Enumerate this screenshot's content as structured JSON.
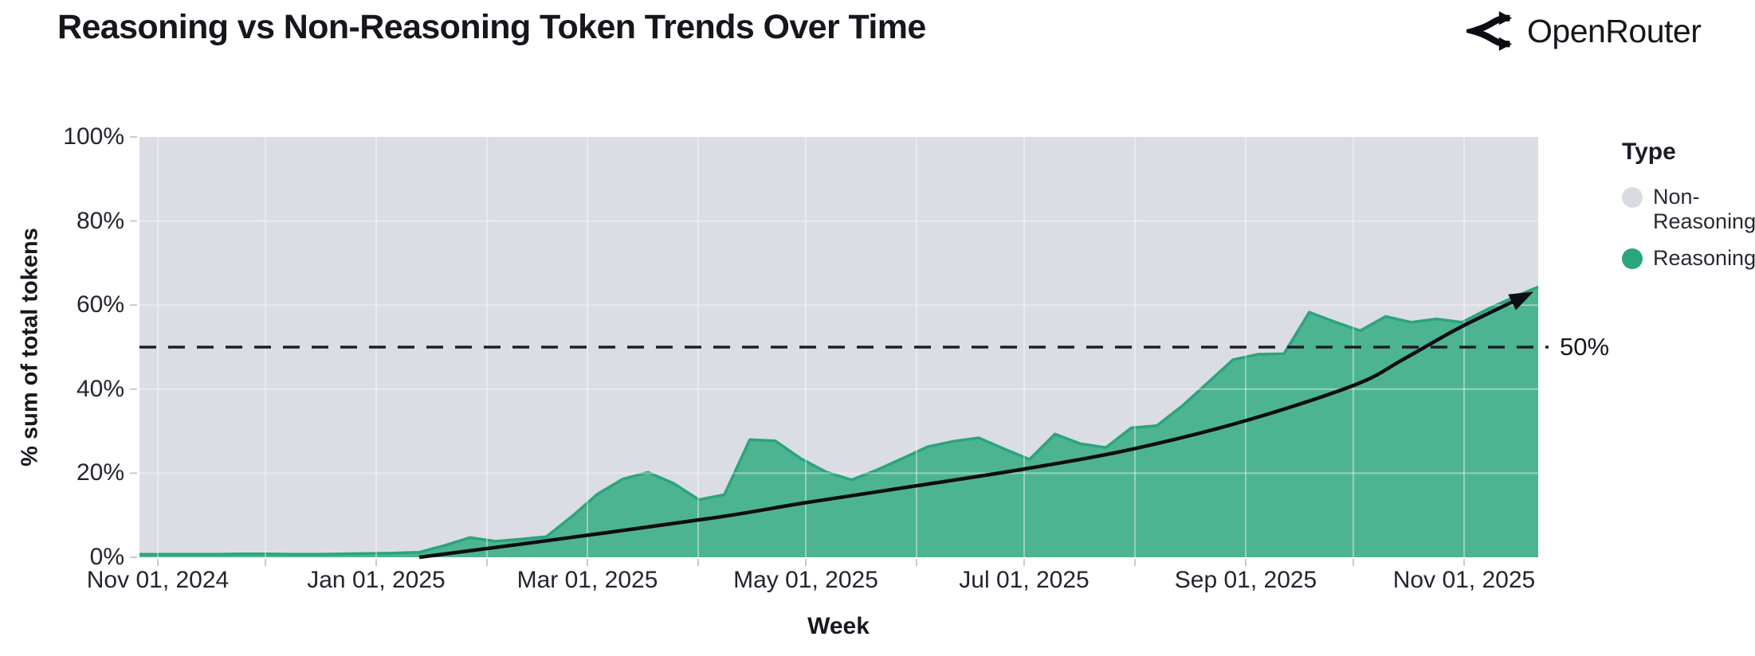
{
  "header": {
    "title": "Reasoning vs Non-Reasoning Token Trends Over Time",
    "brand": "OpenRouter"
  },
  "chart_data": {
    "type": "area",
    "stacked": true,
    "stack_total_pct": 100,
    "title": "Reasoning vs Non-Reasoning Token Trends Over Time",
    "x_axis": {
      "title": "Week",
      "tick_labels": [
        "Nov 01, 2024",
        "Jan 01, 2025",
        "Mar 01, 2025",
        "May 01, 2025",
        "Jul 01, 2025",
        "Sep 01, 2025",
        "Nov 01, 2025"
      ],
      "minor_ticks": [
        "Nov 01, 2024",
        "Dec 01, 2024",
        "Jan 01, 2025",
        "Feb 01, 2025",
        "Mar 01, 2025",
        "Apr 01, 2025",
        "May 01, 2025",
        "Jun 01, 2025",
        "Jul 01, 2025",
        "Aug 01, 2025",
        "Sep 01, 2025",
        "Oct 01, 2025",
        "Nov 01, 2025"
      ]
    },
    "y_axis": {
      "title": "% sum of total tokens",
      "tick_labels_top_to_bottom": [
        "100%",
        "80%",
        "60%",
        "40%",
        "20%",
        "0%"
      ],
      "range": [
        0,
        100
      ],
      "grid": true
    },
    "weeks": [
      "Oct 27, 2024",
      "Nov 03, 2024",
      "Nov 10, 2024",
      "Nov 17, 2024",
      "Nov 24, 2024",
      "Dec 01, 2024",
      "Dec 08, 2024",
      "Dec 15, 2024",
      "Dec 22, 2024",
      "Dec 29, 2024",
      "Jan 05, 2025",
      "Jan 12, 2025",
      "Jan 19, 2025",
      "Jan 26, 2025",
      "Feb 02, 2025",
      "Feb 09, 2025",
      "Feb 16, 2025",
      "Feb 23, 2025",
      "Mar 02, 2025",
      "Mar 09, 2025",
      "Mar 16, 2025",
      "Mar 23, 2025",
      "Mar 30, 2025",
      "Apr 06, 2025",
      "Apr 13, 2025",
      "Apr 20, 2025",
      "Apr 27, 2025",
      "May 04, 2025",
      "May 11, 2025",
      "May 18, 2025",
      "May 25, 2025",
      "Jun 01, 2025",
      "Jun 08, 2025",
      "Jun 15, 2025",
      "Jun 22, 2025",
      "Jun 29, 2025",
      "Jul 06, 2025",
      "Jul 13, 2025",
      "Jul 20, 2025",
      "Jul 27, 2025",
      "Aug 03, 2025",
      "Aug 10, 2025",
      "Aug 17, 2025",
      "Aug 24, 2025",
      "Aug 31, 2025",
      "Sep 07, 2025",
      "Sep 14, 2025",
      "Sep 21, 2025",
      "Sep 28, 2025",
      "Oct 05, 2025",
      "Oct 12, 2025",
      "Oct 19, 2025",
      "Oct 26, 2025",
      "Nov 02, 2025",
      "Nov 09, 2025",
      "Nov 16, 2025"
    ],
    "series": [
      {
        "name": "Reasoning",
        "fill_color": "#4db492",
        "edge_color": "#2ba47d",
        "values_pct": [
          0.7,
          0.7,
          0.7,
          0.7,
          0.8,
          0.8,
          0.7,
          0.7,
          0.8,
          0.9,
          1.0,
          1.2,
          2.8,
          4.7,
          3.8,
          4.3,
          4.9,
          9.7,
          15.0,
          18.6,
          20.2,
          17.6,
          13.7,
          14.9,
          28.0,
          27.7,
          23.5,
          20.3,
          18.4,
          20.8,
          23.5,
          26.3,
          27.6,
          28.4,
          25.8,
          23.3,
          29.3,
          27.0,
          26.1,
          30.8,
          31.3,
          36.0,
          41.5,
          47.0,
          48.3,
          48.4,
          58.3,
          56.0,
          53.9,
          57.3,
          55.9,
          56.7,
          55.9,
          59.0,
          61.8,
          64.3
        ]
      },
      {
        "name": "Non-Reasoning",
        "fill_color": "#dbdde4",
        "values_note": "Complement of Reasoning: 100% minus the Reasoning value each week (stacked to 100%)."
      }
    ],
    "legend": {
      "title": "Type",
      "position": "right",
      "items": [
        {
          "label": "Non-Reasoning",
          "color": "#d8dbe2"
        },
        {
          "label": "Reasoning",
          "color": "#2aa57c"
        }
      ]
    },
    "annotations": {
      "reference_line": {
        "value_pct": 50,
        "label": "50%",
        "style": "dashed-black"
      },
      "trend_arrow": {
        "description": "Smooth rising trend curve with arrowhead",
        "color": "#0c0d12",
        "points_week_index_pct": [
          [
            11.0,
            0
          ],
          [
            16.45,
            4.3
          ],
          [
            22.72,
            9.5
          ],
          [
            26.2,
            13.0
          ],
          [
            30.55,
            17.0
          ],
          [
            34.79,
            21.0
          ],
          [
            39.02,
            25.7
          ],
          [
            43.5,
            32.5
          ],
          [
            47.79,
            41.0
          ],
          [
            49.67,
            47.0
          ],
          [
            51.87,
            54.5
          ],
          [
            54.59,
            62.5
          ]
        ]
      }
    }
  }
}
